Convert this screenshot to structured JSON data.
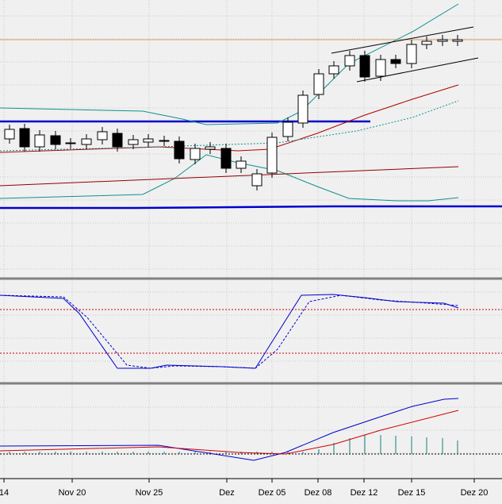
{
  "x_axis": {
    "labels": [
      "14",
      "Nov 20",
      "Nov 25",
      "Dez",
      "Dez 05",
      "Dez 08",
      "Dez 12",
      "Dez 15",
      "Dez 20"
    ]
  }
}
